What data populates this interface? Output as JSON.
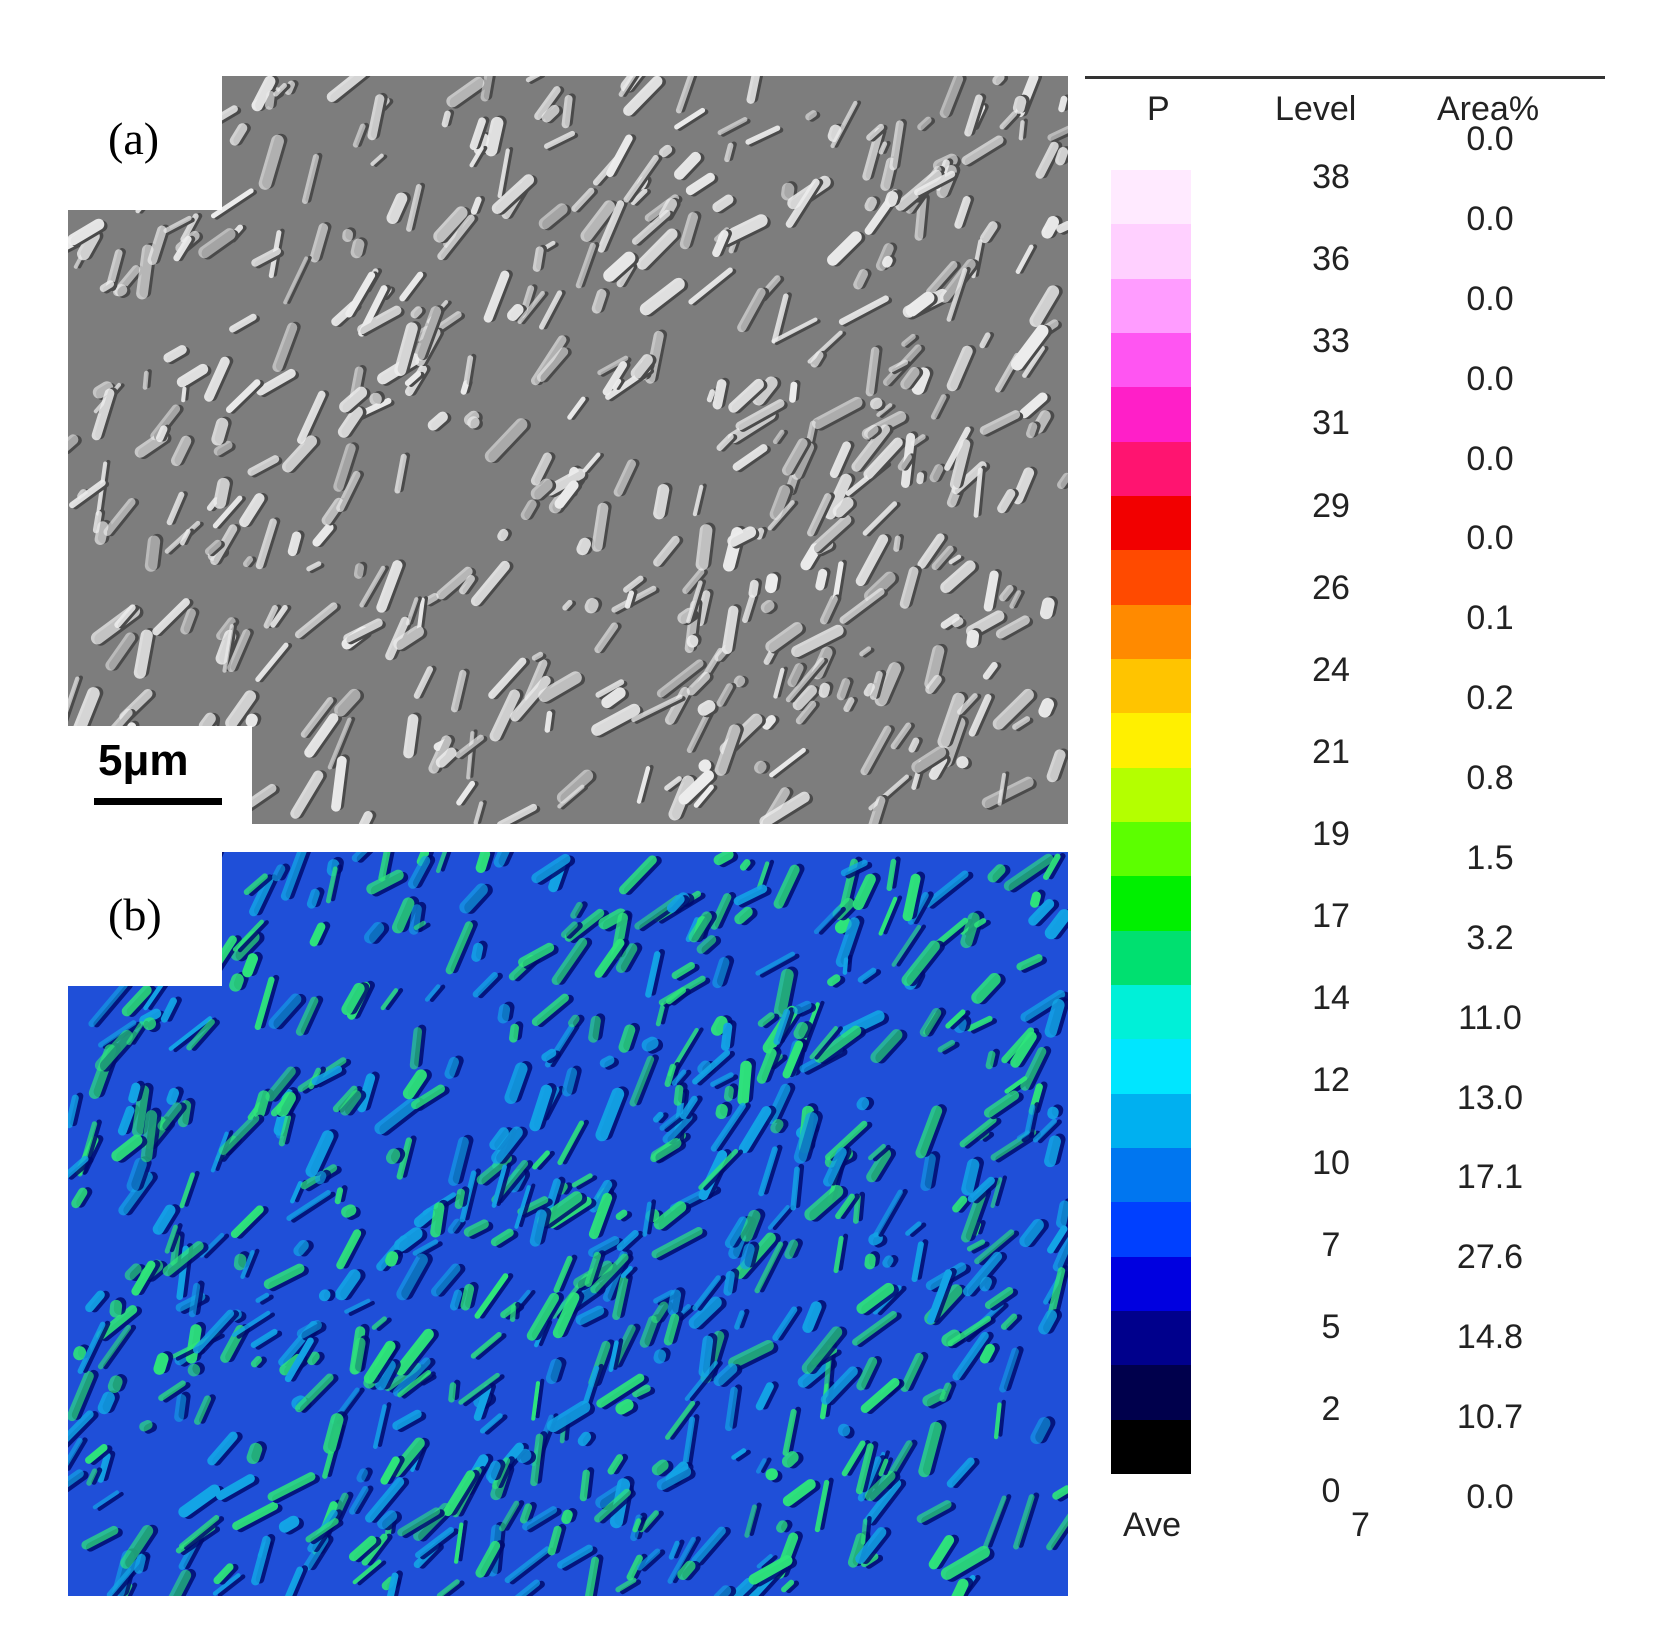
{
  "panels": {
    "a": {
      "label": "(a)",
      "scale_bar": "5μm",
      "colors": {
        "base": "#7d7d7d",
        "dark": "#4a4a4a",
        "bright": "#ececec"
      }
    },
    "b": {
      "label": "(b)",
      "colors": {
        "base": "#1f4fd8",
        "dark": "#000a6e",
        "mid": "#13a4e6",
        "bright": "#2ee67a"
      }
    }
  },
  "legend": {
    "headers": {
      "element": "P",
      "level": "Level",
      "area": "Area%"
    },
    "levels": [
      "38",
      "36",
      "33",
      "31",
      "29",
      "26",
      "24",
      "21",
      "19",
      "17",
      "14",
      "12",
      "10",
      "7",
      "5",
      "2",
      "0"
    ],
    "area_percent": [
      "0.0",
      "0.0",
      "0.0",
      "0.0",
      "0.0",
      "0.0",
      "0.1",
      "0.2",
      "0.8",
      "1.5",
      "3.2",
      "11.0",
      "13.0",
      "17.1",
      "27.6",
      "14.8",
      "10.7",
      "0.0"
    ],
    "ave_label": "Ave",
    "ave_value": "7",
    "colorbar": [
      "#ffeaff",
      "#ffd0ff",
      "#ff9cff",
      "#ff55f2",
      "#ff1fc8",
      "#ff1470",
      "#f20000",
      "#ff4a00",
      "#ff8a00",
      "#ffc400",
      "#fff000",
      "#b4ff00",
      "#5cff00",
      "#00f000",
      "#00e070",
      "#00f0d8",
      "#00e6ff",
      "#00b0f0",
      "#0076f0",
      "#0040ff",
      "#0000e0",
      "#00008c",
      "#00004c",
      "#000000"
    ]
  }
}
